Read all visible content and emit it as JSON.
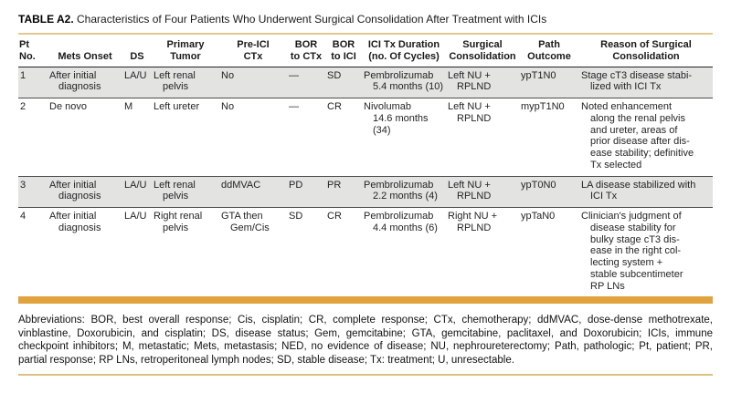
{
  "caption": {
    "label": "TABLE A2.",
    "text": "Characteristics of Four Patients Who Underwent Surgical Consolidation After Treatment with ICIs"
  },
  "table": {
    "columns": [
      {
        "key": "pt-no",
        "label": "Pt\nNo."
      },
      {
        "key": "mets-onset",
        "label": "Mets Onset"
      },
      {
        "key": "ds",
        "label": "DS"
      },
      {
        "key": "primary-tumor",
        "label": "Primary\nTumor"
      },
      {
        "key": "pre-ici-ctx",
        "label": "Pre-ICI\nCTx"
      },
      {
        "key": "bor-to-ctx",
        "label": "BOR\nto CTx"
      },
      {
        "key": "bor-to-ici",
        "label": "BOR\nto ICI"
      },
      {
        "key": "ici-tx-duration",
        "label": "ICI Tx Duration\n(no. Of Cycles)"
      },
      {
        "key": "surgical-consolidation",
        "label": "Surgical\nConsolidation"
      },
      {
        "key": "path-outcome",
        "label": "Path\nOutcome"
      },
      {
        "key": "reason",
        "label": "Reason of Surgical\nConsolidation"
      }
    ],
    "rows": [
      {
        "shaded": true,
        "cells": [
          "1",
          "After initial\ndiagnosis",
          "LA/U",
          "Left renal\npelvis",
          "No",
          "—",
          "SD",
          "Pembrolizumab\n5.4 months (10)",
          "Left NU +\nRPLND",
          "ypT1N0",
          "Stage cT3 disease stabi-\nlized with ICI Tx"
        ]
      },
      {
        "shaded": false,
        "cells": [
          "2",
          "De novo",
          "M",
          "Left ureter",
          "No",
          "—",
          "CR",
          "Nivolumab\n14.6 months\n(34)",
          "Left NU +\nRPLND",
          "mypT1N0",
          "Noted enhancement\nalong the renal pelvis\nand ureter, areas of\nprior disease after dis-\nease stability; definitive\nTx selected"
        ]
      },
      {
        "shaded": true,
        "cells": [
          "3",
          "After initial\ndiagnosis",
          "LA/U",
          "Left renal\npelvis",
          "ddMVAC",
          "PD",
          "PR",
          "Pembrolizumab\n2.2 months (4)",
          "Left NU +\nRPLND",
          "ypT0N0",
          "LA disease stabilized with\nICI Tx"
        ]
      },
      {
        "shaded": false,
        "cells": [
          "4",
          "After initial\ndiagnosis",
          "LA/U",
          "Right renal\npelvis",
          "GTA then\nGem/Cis",
          "SD",
          "CR",
          "Pembrolizumab\n4.4 months (6)",
          "Right NU +\nRPLND",
          "ypTaN0",
          "Clinician's judgment of\ndisease stability for\nbulky stage cT3 dis-\nease in the right col-\nlecting system +\nstable subcentimeter\nRP LNs"
        ]
      }
    ]
  },
  "footnote": "Abbreviations: BOR, best overall response; Cis, cisplatin; CR, complete response; CTx, chemotherapy; ddMVAC, dose-dense methotrexate, vinblastine, Doxorubicin, and cisplatin; DS, disease status; Gem, gemcitabine; GTA, gemcitabine, paclitaxel, and Doxorubicin; ICIs, immune checkpoint inhibitors; M, metastatic; Mets, metastasis; NED, no evidence of disease; NU, nephroureterectomy; Path, pathologic; Pt, patient; PR, partial response; RP LNs, retroperitoneal lymph nodes; SD, stable disease; Tx: treatment; U, unresectable.",
  "colors": {
    "amber_band": "#e1a33d",
    "gold_rule_top": "#e2c98f",
    "gold_rule_bottom": "#dbc183",
    "shaded_row": "#e3e3e2"
  }
}
